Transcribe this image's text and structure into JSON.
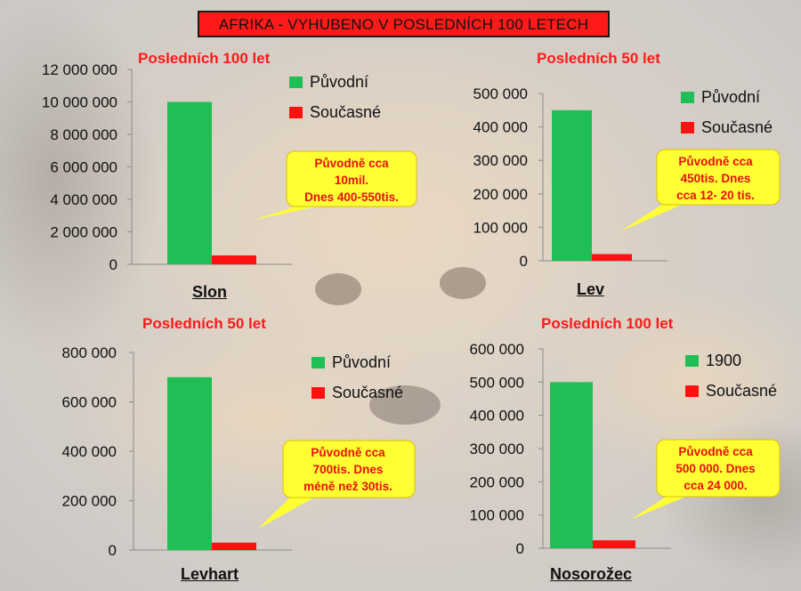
{
  "main_title": "AFRIKA - VYHUBENO V POSLEDNÍCH 100 LETECH",
  "colors": {
    "original": "#1fbf55",
    "current": "#ff1111",
    "title_bg": "#ff1a1a",
    "callout_fill": "#ffff33",
    "callout_text": "#e81010"
  },
  "chart_data": [
    {
      "type": "bar",
      "title": "Posledních 100 let",
      "categories": [
        "Slon"
      ],
      "series": [
        {
          "name": "Původní",
          "values": [
            10000000
          ]
        },
        {
          "name": "Současné",
          "values": [
            550000
          ]
        }
      ],
      "ylim": [
        0,
        12000000
      ],
      "yticks": [
        "0",
        "2 000 000",
        "4 000 000",
        "6 000 000",
        "8 000 000",
        "10 000 000",
        "12 000 000"
      ],
      "annotation": [
        "Původně cca",
        "10mil.",
        "Dnes  400-550tis."
      ],
      "legend_position": "top-right",
      "grid": false
    },
    {
      "type": "bar",
      "title": "Posledních 50 let",
      "categories": [
        "Lev"
      ],
      "series": [
        {
          "name": "Původní",
          "values": [
            450000
          ]
        },
        {
          "name": "Současné",
          "values": [
            20000
          ]
        }
      ],
      "ylim": [
        0,
        500000
      ],
      "yticks": [
        "0",
        "100 000",
        "200 000",
        "300 000",
        "400 000",
        "500 000"
      ],
      "annotation": [
        "Původně cca",
        "450tis. Dnes",
        "cca 12- 20 tis."
      ],
      "legend_position": "top-right",
      "grid": false
    },
    {
      "type": "bar",
      "title": "Posledních 50 let",
      "categories": [
        "Levhart"
      ],
      "series": [
        {
          "name": "Původní",
          "values": [
            700000
          ]
        },
        {
          "name": "Současné",
          "values": [
            30000
          ]
        }
      ],
      "ylim": [
        0,
        800000
      ],
      "yticks": [
        "0",
        "200 000",
        "400 000",
        "600 000",
        "800 000"
      ],
      "annotation": [
        "Původně cca",
        "700tis. Dnes",
        "méně než 30tis."
      ],
      "legend_position": "top-right",
      "grid": false
    },
    {
      "type": "bar",
      "title": "Posledních 100 let",
      "categories": [
        "Nosorožec"
      ],
      "series": [
        {
          "name": "1900",
          "values": [
            500000
          ]
        },
        {
          "name": "Současné",
          "values": [
            24000
          ]
        }
      ],
      "ylim": [
        0,
        600000
      ],
      "yticks": [
        "0",
        "100 000",
        "200 000",
        "300 000",
        "400 000",
        "500 000",
        "600 000"
      ],
      "annotation": [
        "Původně cca",
        "500 000. Dnes",
        "cca 24 000."
      ],
      "legend_position": "top-right",
      "grid": false
    }
  ]
}
